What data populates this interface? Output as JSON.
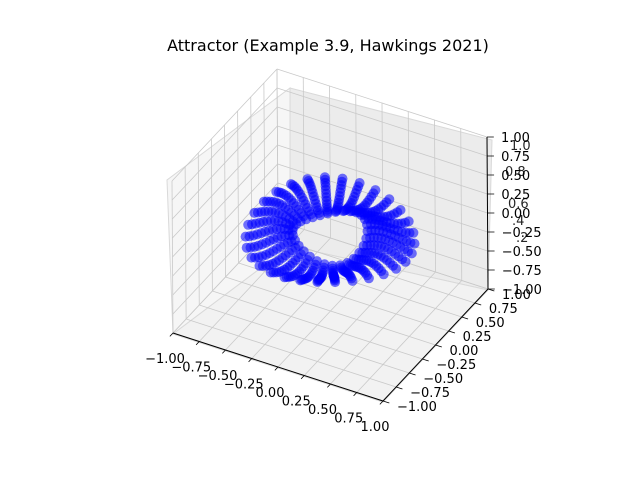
{
  "chart_data": {
    "type": "scatter",
    "projection": "3d",
    "title": "Attractor (Example 3.9, Hawkings 2021)",
    "xlabel": "",
    "ylabel": "",
    "zlabel": "",
    "xlim": [
      -1.0,
      1.0
    ],
    "ylim": [
      -1.0,
      1.0
    ],
    "zlim": [
      -1.0,
      1.0
    ],
    "grid": true,
    "x_ticks": [
      "−1.00",
      "−0.75",
      "−0.50",
      "−0.25",
      "0.00",
      "0.25",
      "0.50",
      "0.75",
      "1.00"
    ],
    "y_ticks": [
      "−1.00",
      "−0.75",
      "−0.50",
      "−0.25",
      "0.00",
      "0.25",
      "0.50",
      "0.75",
      "1.00"
    ],
    "z_ticks": [
      "−1.00",
      "−0.75",
      "−0.50",
      "−0.25",
      "0.00",
      "0.25",
      "0.50",
      "0.75",
      "1.00"
    ],
    "overlapping_tick_fragments": [
      "0.6",
      "0.8",
      "1.0",
      ".4",
      ".2"
    ],
    "marker_color": "#0000ff",
    "shape": "torus-like ring of short radial streaks",
    "ring": {
      "major_radius": 0.52,
      "streak_count": 30,
      "streak_inner_offset": -0.2,
      "streak_outer_offset": 0.2,
      "z_amplitude": 0.07,
      "z_center": 0.0
    }
  }
}
